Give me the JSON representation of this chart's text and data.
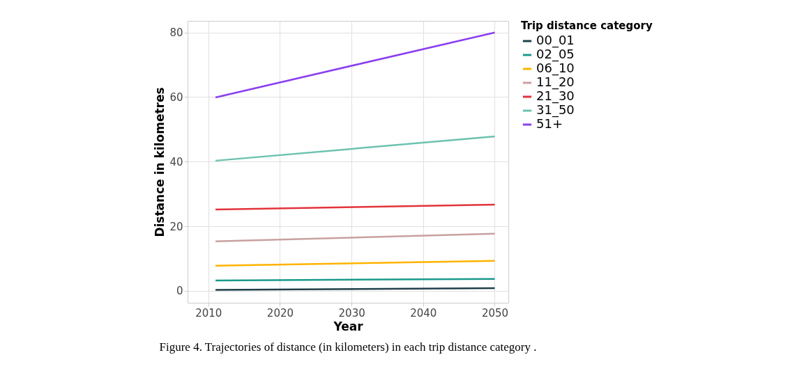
{
  "chart_data": {
    "type": "line",
    "xlabel": "Year",
    "ylabel": "Distance in kilometres",
    "legend_title": "Trip distance category",
    "x": [
      2011,
      2050
    ],
    "xlim": [
      2007.1,
      2051.9
    ],
    "xticks": [
      2010,
      2020,
      2030,
      2040,
      2050
    ],
    "ylim": [
      -3.7,
      83.6
    ],
    "yticks": [
      0,
      20,
      40,
      60,
      80
    ],
    "grid": true,
    "legend": "right",
    "marker": "none",
    "line_style": "solid",
    "series": [
      {
        "name": "00_01",
        "color": "#1f3f4a",
        "values": [
          0.3,
          0.8
        ]
      },
      {
        "name": "02_05",
        "color": "#1a9a8a",
        "values": [
          3.2,
          3.7
        ]
      },
      {
        "name": "06_10",
        "color": "#ffb300",
        "values": [
          7.8,
          9.3
        ]
      },
      {
        "name": "11_20",
        "color": "#c9a0a0",
        "values": [
          15.3,
          17.7
        ]
      },
      {
        "name": "21_30",
        "color": "#e3333b",
        "values": [
          25.2,
          26.7
        ]
      },
      {
        "name": "31_50",
        "color": "#6cc2b0",
        "values": [
          40.3,
          47.8
        ]
      },
      {
        "name": "51+",
        "color": "#8a3ff0",
        "values": [
          59.9,
          80.0
        ]
      }
    ],
    "annotations": [
      "Figure 4. Trajectories of distance (in kilometers) in each trip distance category ."
    ]
  }
}
